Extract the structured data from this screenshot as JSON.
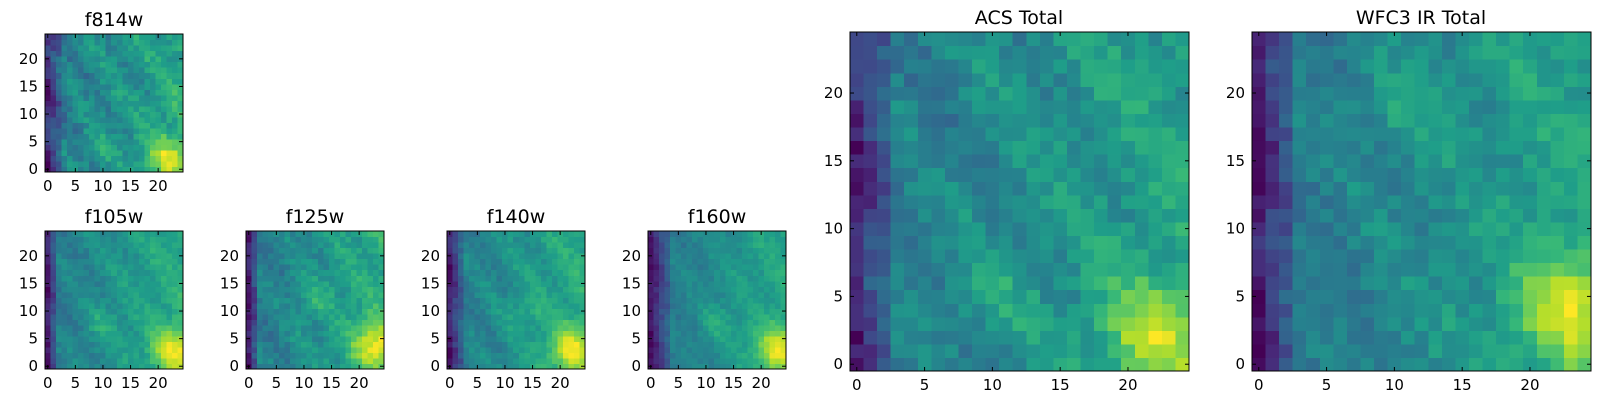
{
  "chart_data": [
    {
      "type": "heatmap",
      "title": "f814w",
      "x_ticks": [
        0,
        5,
        10,
        15,
        20
      ],
      "y_ticks": [
        0,
        5,
        10,
        15,
        20
      ],
      "xlim": [
        0,
        25
      ],
      "ylim": [
        0,
        25
      ],
      "grid": false,
      "colormap": "viridis",
      "pattern": {
        "seed": 11,
        "lowCols": 3,
        "hotspot": [
          22,
          2
        ],
        "blob": [
          9,
          4
        ],
        "noise": 0.1,
        "ridge": 0.08
      }
    },
    {
      "type": "heatmap",
      "title": "f105w",
      "x_ticks": [
        0,
        5,
        10,
        15,
        20
      ],
      "y_ticks": [
        0,
        5,
        10,
        15,
        20
      ],
      "xlim": [
        0,
        25
      ],
      "ylim": [
        0,
        25
      ],
      "grid": false,
      "colormap": "viridis",
      "pattern": {
        "seed": 23,
        "lowCols": 2,
        "hotspot": [
          23,
          3
        ],
        "blob": [
          10,
          8
        ],
        "noise": 0.06,
        "ridge": 0.05
      }
    },
    {
      "type": "heatmap",
      "title": "f125w",
      "x_ticks": [
        0,
        5,
        10,
        15,
        20
      ],
      "y_ticks": [
        0,
        5,
        10,
        15,
        20
      ],
      "xlim": [
        0,
        25
      ],
      "ylim": [
        0,
        25
      ],
      "grid": false,
      "colormap": "viridis",
      "pattern": {
        "seed": 37,
        "lowCols": 2,
        "hotspot": [
          23,
          4
        ],
        "blob": [
          12,
          12
        ],
        "noise": 0.07,
        "ridge": 0.05
      }
    },
    {
      "type": "heatmap",
      "title": "f140w",
      "x_ticks": [
        0,
        5,
        10,
        15,
        20
      ],
      "y_ticks": [
        0,
        5,
        10,
        15,
        20
      ],
      "xlim": [
        0,
        25
      ],
      "ylim": [
        0,
        25
      ],
      "grid": false,
      "colormap": "viridis",
      "pattern": {
        "seed": 41,
        "lowCols": 3,
        "hotspot": [
          22,
          3
        ],
        "blob": [
          14,
          10
        ],
        "noise": 0.06,
        "ridge": 0.06
      }
    },
    {
      "type": "heatmap",
      "title": "f160w",
      "x_ticks": [
        0,
        5,
        10,
        15,
        20
      ],
      "y_ticks": [
        0,
        5,
        10,
        15,
        20
      ],
      "xlim": [
        0,
        25
      ],
      "ylim": [
        0,
        25
      ],
      "grid": false,
      "colormap": "viridis",
      "pattern": {
        "seed": 53,
        "lowCols": 4,
        "hotspot": [
          23,
          3
        ],
        "blob": [
          12,
          8
        ],
        "noise": 0.05,
        "ridge": 0.04
      }
    },
    {
      "type": "heatmap",
      "title": "ACS Total",
      "x_ticks": [
        0,
        5,
        10,
        15,
        20
      ],
      "y_ticks": [
        0,
        5,
        10,
        15,
        20
      ],
      "xlim": [
        0,
        25
      ],
      "ylim": [
        0,
        25
      ],
      "grid": false,
      "colormap": "viridis",
      "pattern": {
        "seed": 67,
        "lowCols": 3,
        "hotspot": [
          22,
          2
        ],
        "blob": [
          10,
          5
        ],
        "noise": 0.1,
        "ridge": 0.08
      }
    },
    {
      "type": "heatmap",
      "title": "WFC3 IR Total",
      "x_ticks": [
        0,
        5,
        10,
        15,
        20
      ],
      "y_ticks": [
        0,
        5,
        10,
        15,
        20
      ],
      "xlim": [
        0,
        25
      ],
      "ylim": [
        0,
        25
      ],
      "grid": false,
      "colormap": "viridis",
      "pattern": {
        "seed": 79,
        "lowCols": 3,
        "hotspot": [
          23,
          4
        ],
        "blob": [
          10,
          19
        ],
        "noise": 0.09,
        "ridge": 0.05
      }
    }
  ]
}
